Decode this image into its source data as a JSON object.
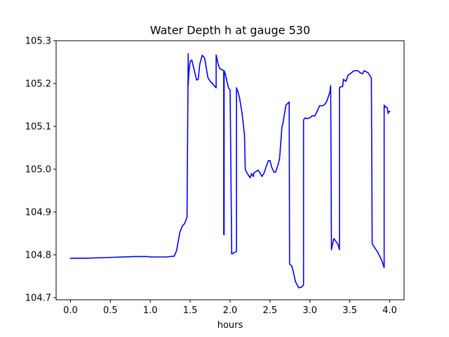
{
  "chart_data": {
    "type": "line",
    "title": "Water Depth h at gauge 530",
    "xlabel": "hours",
    "ylabel": "",
    "xlim": [
      -0.18,
      4.18
    ],
    "ylim": [
      104.695,
      105.3
    ],
    "grid": false,
    "xticks": [
      0.0,
      0.5,
      1.0,
      1.5,
      2.0,
      2.5,
      3.0,
      3.5,
      4.0
    ],
    "xtick_labels": [
      "0.0",
      "0.5",
      "1.0",
      "1.5",
      "2.0",
      "2.5",
      "3.0",
      "3.5",
      "4.0"
    ],
    "yticks": [
      104.7,
      104.8,
      104.9,
      105.0,
      105.1,
      105.2,
      105.3
    ],
    "ytick_labels": [
      "104.7",
      "104.8",
      "104.9",
      "105.0",
      "105.1",
      "105.2",
      "105.3"
    ],
    "series": [
      {
        "color": "#0000ff",
        "x": [
          0.0,
          0.2,
          0.5,
          0.8,
          0.97,
          1.0,
          1.1,
          1.2,
          1.3,
          1.33,
          1.35,
          1.37,
          1.4,
          1.43,
          1.46,
          1.475,
          1.475,
          1.48,
          1.49,
          1.5,
          1.52,
          1.55,
          1.58,
          1.6,
          1.62,
          1.65,
          1.68,
          1.7,
          1.72,
          1.75,
          1.78,
          1.8,
          1.825,
          1.825,
          1.85,
          1.87,
          1.9,
          1.92,
          1.92,
          1.925,
          1.925,
          1.94,
          1.96,
          1.98,
          2.0,
          2.02,
          2.02,
          2.05,
          2.08,
          2.08,
          2.1,
          2.12,
          2.15,
          2.18,
          2.19,
          2.2,
          2.25,
          2.27,
          2.29,
          2.3,
          2.33,
          2.35,
          2.37,
          2.4,
          2.43,
          2.45,
          2.48,
          2.5,
          2.52,
          2.55,
          2.57,
          2.6,
          2.62,
          2.65,
          2.66,
          2.7,
          2.73,
          2.74,
          2.745,
          2.76,
          2.77,
          2.79,
          2.82,
          2.86,
          2.9,
          2.92,
          2.92,
          2.94,
          2.96,
          3.0,
          3.03,
          3.06,
          3.09,
          3.12,
          3.15,
          3.18,
          3.21,
          3.25,
          3.26,
          3.27,
          3.28,
          3.3,
          3.35,
          3.37,
          3.37,
          3.38,
          3.41,
          3.42,
          3.45,
          3.48,
          3.52,
          3.55,
          3.6,
          3.63,
          3.66,
          3.68,
          3.7,
          3.73,
          3.77,
          3.78,
          3.8,
          3.85,
          3.9,
          3.93,
          3.93,
          3.94,
          3.95,
          3.97,
          3.98,
          3.99,
          4.0
        ],
        "y": [
          104.792,
          104.792,
          104.794,
          104.796,
          104.796,
          104.795,
          104.795,
          104.795,
          104.797,
          104.81,
          104.832,
          104.852,
          104.867,
          104.873,
          104.888,
          105.27,
          105.195,
          105.215,
          105.237,
          105.252,
          105.255,
          105.232,
          105.208,
          105.21,
          105.245,
          105.266,
          105.26,
          105.238,
          105.215,
          105.205,
          105.2,
          105.195,
          105.19,
          105.267,
          105.245,
          105.235,
          105.232,
          105.23,
          104.848,
          104.847,
          105.23,
          105.222,
          105.205,
          105.19,
          105.185,
          104.805,
          104.802,
          104.805,
          104.808,
          105.19,
          105.18,
          105.165,
          105.13,
          105.08,
          105.0,
          104.995,
          104.98,
          104.99,
          104.983,
          104.992,
          104.995,
          104.998,
          104.993,
          104.983,
          104.993,
          105.005,
          105.02,
          105.02,
          105.005,
          104.993,
          104.993,
          105.01,
          105.025,
          105.1,
          105.105,
          105.15,
          105.155,
          105.157,
          104.778,
          104.776,
          104.775,
          104.762,
          104.737,
          104.723,
          104.725,
          104.73,
          105.115,
          105.12,
          105.118,
          105.12,
          105.125,
          105.124,
          105.135,
          105.148,
          105.148,
          105.15,
          105.158,
          105.18,
          105.195,
          104.812,
          104.822,
          104.838,
          104.825,
          104.812,
          105.19,
          105.192,
          105.193,
          105.21,
          105.205,
          105.22,
          105.225,
          105.23,
          105.23,
          105.225,
          105.223,
          105.23,
          105.228,
          105.225,
          105.213,
          104.826,
          104.82,
          104.806,
          104.787,
          104.77,
          105.15,
          105.145,
          105.146,
          105.143,
          105.13,
          105.135,
          105.135
        ]
      }
    ]
  }
}
